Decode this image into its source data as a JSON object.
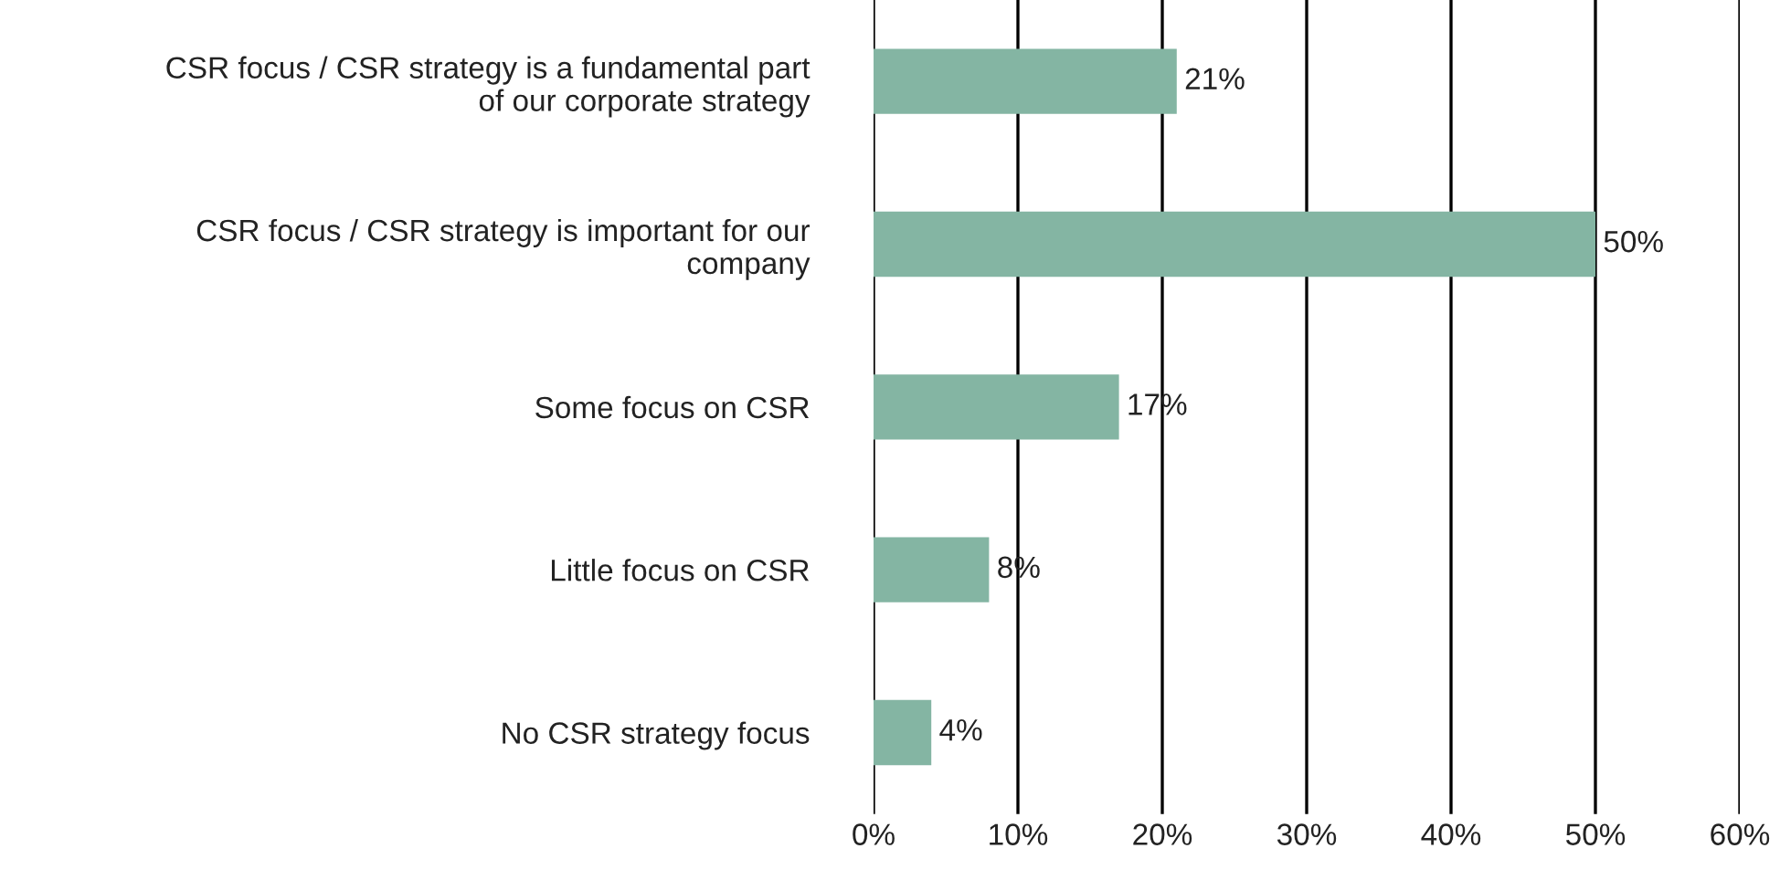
{
  "chart_data": {
    "type": "bar",
    "orientation": "horizontal",
    "categories": [
      "CSR focus / CSR strategy is a fundamental part\nof our corporate strategy",
      "CSR focus / CSR strategy is important for our\ncompany",
      "Some focus on CSR",
      "Little focus on CSR",
      "No CSR strategy focus"
    ],
    "values": [
      21,
      50,
      17,
      8,
      4
    ],
    "color": "#84b5a3",
    "value_labels": [
      "21%",
      "50%",
      "17%",
      "8%",
      "4%"
    ],
    "xlim": [
      0,
      60
    ],
    "xticks": [
      {
        "value": 0,
        "label": "0%"
      },
      {
        "value": 10,
        "label": "10%"
      },
      {
        "value": 20,
        "label": "20%"
      },
      {
        "value": 30,
        "label": "30%"
      },
      {
        "value": 40,
        "label": "40%"
      },
      {
        "value": 50,
        "label": "50%"
      },
      {
        "value": 60,
        "label": "60%"
      }
    ],
    "grid": "x"
  }
}
